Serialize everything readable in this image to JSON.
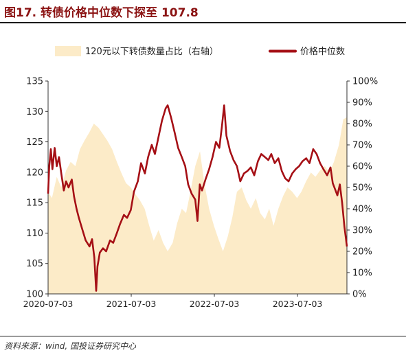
{
  "figure": {
    "title": "图17. 转债价格中位数下探至 107.8",
    "source": "资料来源：wind, 国投证券研究中心"
  },
  "chart_data": {
    "type": "line",
    "legend_position": "top",
    "grid": false,
    "x_ticks": [
      "2020-07-03",
      "2021-07-03",
      "2022-07-03",
      "2023-07-03"
    ],
    "xlim": [
      "2020-07-03",
      "2024-02-05"
    ],
    "y_left": {
      "lim": [
        100,
        135
      ],
      "ticks": [
        "100",
        "105",
        "110",
        "115",
        "120",
        "125",
        "130",
        "135"
      ]
    },
    "y_right": {
      "lim": [
        0,
        100
      ],
      "ticks": [
        "0%",
        "10%",
        "20%",
        "30%",
        "40%",
        "50%",
        "60%",
        "70%",
        "80%",
        "90%",
        "100%"
      ]
    },
    "series": [
      {
        "name": "120元以下转债数量占比（右轴）",
        "kind": "area",
        "axis": "right",
        "color": "#fcebc8",
        "points": [
          [
            "2020-07-03",
            48
          ],
          [
            "2020-07-20",
            45
          ],
          [
            "2020-08-10",
            55
          ],
          [
            "2020-08-30",
            50
          ],
          [
            "2020-09-20",
            58
          ],
          [
            "2020-10-10",
            62
          ],
          [
            "2020-10-31",
            60
          ],
          [
            "2020-11-20",
            68
          ],
          [
            "2020-12-10",
            72
          ],
          [
            "2021-01-01",
            76
          ],
          [
            "2021-01-20",
            80
          ],
          [
            "2021-02-10",
            78
          ],
          [
            "2021-03-01",
            75
          ],
          [
            "2021-03-20",
            72
          ],
          [
            "2021-04-10",
            68
          ],
          [
            "2021-05-01",
            62
          ],
          [
            "2021-05-20",
            57
          ],
          [
            "2021-06-10",
            52
          ],
          [
            "2021-07-01",
            50
          ],
          [
            "2021-07-20",
            47
          ],
          [
            "2021-08-10",
            44
          ],
          [
            "2021-08-31",
            40
          ],
          [
            "2021-09-20",
            32
          ],
          [
            "2021-10-10",
            25
          ],
          [
            "2021-10-31",
            30
          ],
          [
            "2021-11-20",
            24
          ],
          [
            "2021-12-10",
            20
          ],
          [
            "2022-01-01",
            24
          ],
          [
            "2022-01-20",
            33
          ],
          [
            "2022-02-10",
            40
          ],
          [
            "2022-03-01",
            38
          ],
          [
            "2022-03-20",
            48
          ],
          [
            "2022-04-10",
            60
          ],
          [
            "2022-05-01",
            67
          ],
          [
            "2022-05-20",
            52
          ],
          [
            "2022-06-10",
            40
          ],
          [
            "2022-07-01",
            32
          ],
          [
            "2022-07-20",
            26
          ],
          [
            "2022-08-10",
            20
          ],
          [
            "2022-08-31",
            27
          ],
          [
            "2022-09-20",
            36
          ],
          [
            "2022-10-10",
            48
          ],
          [
            "2022-10-31",
            50
          ],
          [
            "2022-11-20",
            44
          ],
          [
            "2022-12-10",
            40
          ],
          [
            "2023-01-01",
            45
          ],
          [
            "2023-01-20",
            38
          ],
          [
            "2023-02-10",
            35
          ],
          [
            "2023-03-01",
            40
          ],
          [
            "2023-03-20",
            32
          ],
          [
            "2023-04-10",
            40
          ],
          [
            "2023-05-01",
            46
          ],
          [
            "2023-05-20",
            50
          ],
          [
            "2023-06-10",
            48
          ],
          [
            "2023-07-01",
            45
          ],
          [
            "2023-07-20",
            48
          ],
          [
            "2023-08-10",
            53
          ],
          [
            "2023-08-31",
            57
          ],
          [
            "2023-09-20",
            55
          ],
          [
            "2023-10-10",
            58
          ],
          [
            "2023-10-31",
            60
          ],
          [
            "2023-11-20",
            57
          ],
          [
            "2023-12-10",
            62
          ],
          [
            "2024-01-01",
            70
          ],
          [
            "2024-01-20",
            82
          ],
          [
            "2024-02-05",
            83
          ]
        ]
      },
      {
        "name": "价格中位数",
        "kind": "line",
        "axis": "left",
        "color": "#a50f15",
        "points": [
          [
            "2020-07-03",
            116.5
          ],
          [
            "2020-07-08",
            121.0
          ],
          [
            "2020-07-15",
            123.8
          ],
          [
            "2020-07-22",
            120.5
          ],
          [
            "2020-08-01",
            124.0
          ],
          [
            "2020-08-10",
            121.0
          ],
          [
            "2020-08-20",
            122.5
          ],
          [
            "2020-08-30",
            119.8
          ],
          [
            "2020-09-10",
            117.0
          ],
          [
            "2020-09-20",
            118.5
          ],
          [
            "2020-10-01",
            117.5
          ],
          [
            "2020-10-15",
            118.8
          ],
          [
            "2020-10-25",
            116.0
          ],
          [
            "2020-11-05",
            114.0
          ],
          [
            "2020-11-15",
            112.5
          ],
          [
            "2020-12-01",
            110.5
          ],
          [
            "2020-12-15",
            108.8
          ],
          [
            "2021-01-01",
            107.8
          ],
          [
            "2021-01-12",
            109.0
          ],
          [
            "2021-01-22",
            106.0
          ],
          [
            "2021-01-30",
            100.5
          ],
          [
            "2021-02-05",
            104.5
          ],
          [
            "2021-02-15",
            106.8
          ],
          [
            "2021-03-01",
            107.5
          ],
          [
            "2021-03-15",
            107.0
          ],
          [
            "2021-04-01",
            108.8
          ],
          [
            "2021-04-15",
            108.4
          ],
          [
            "2021-05-01",
            110.0
          ],
          [
            "2021-05-15",
            111.5
          ],
          [
            "2021-06-01",
            113.0
          ],
          [
            "2021-06-15",
            112.5
          ],
          [
            "2021-07-01",
            113.8
          ],
          [
            "2021-07-15",
            116.8
          ],
          [
            "2021-08-01",
            118.5
          ],
          [
            "2021-08-15",
            121.5
          ],
          [
            "2021-09-01",
            119.8
          ],
          [
            "2021-09-15",
            122.5
          ],
          [
            "2021-10-01",
            124.5
          ],
          [
            "2021-10-15",
            123.0
          ],
          [
            "2021-11-01",
            126.0
          ],
          [
            "2021-11-15",
            128.5
          ],
          [
            "2021-12-01",
            130.5
          ],
          [
            "2021-12-10",
            131.0
          ],
          [
            "2021-12-25",
            129.0
          ],
          [
            "2022-01-10",
            126.5
          ],
          [
            "2022-01-25",
            124.0
          ],
          [
            "2022-02-10",
            122.5
          ],
          [
            "2022-02-25",
            121.0
          ],
          [
            "2022-03-10",
            118.0
          ],
          [
            "2022-03-25",
            116.5
          ],
          [
            "2022-04-10",
            115.5
          ],
          [
            "2022-04-20",
            112.0
          ],
          [
            "2022-04-30",
            118.0
          ],
          [
            "2022-05-10",
            117.0
          ],
          [
            "2022-05-25",
            118.8
          ],
          [
            "2022-06-10",
            120.5
          ],
          [
            "2022-06-25",
            122.5
          ],
          [
            "2022-07-10",
            125.0
          ],
          [
            "2022-07-25",
            124.0
          ],
          [
            "2022-08-05",
            127.5
          ],
          [
            "2022-08-15",
            131.0
          ],
          [
            "2022-08-25",
            126.0
          ],
          [
            "2022-09-10",
            123.5
          ],
          [
            "2022-09-25",
            122.0
          ],
          [
            "2022-10-10",
            121.0
          ],
          [
            "2022-10-25",
            118.5
          ],
          [
            "2022-11-10",
            119.8
          ],
          [
            "2022-11-25",
            120.2
          ],
          [
            "2022-12-10",
            120.8
          ],
          [
            "2022-12-25",
            119.5
          ],
          [
            "2023-01-10",
            121.8
          ],
          [
            "2023-01-25",
            123.0
          ],
          [
            "2023-02-10",
            122.5
          ],
          [
            "2023-02-25",
            122.0
          ],
          [
            "2023-03-10",
            123.0
          ],
          [
            "2023-03-25",
            121.5
          ],
          [
            "2023-04-10",
            122.3
          ],
          [
            "2023-04-25",
            120.2
          ],
          [
            "2023-05-10",
            119.0
          ],
          [
            "2023-05-25",
            118.5
          ],
          [
            "2023-06-10",
            119.8
          ],
          [
            "2023-06-25",
            120.5
          ],
          [
            "2023-07-10",
            121.0
          ],
          [
            "2023-07-25",
            121.8
          ],
          [
            "2023-08-10",
            122.3
          ],
          [
            "2023-08-25",
            121.5
          ],
          [
            "2023-09-10",
            123.8
          ],
          [
            "2023-09-25",
            123.0
          ],
          [
            "2023-10-10",
            121.5
          ],
          [
            "2023-10-25",
            120.5
          ],
          [
            "2023-11-10",
            119.5
          ],
          [
            "2023-11-25",
            120.8
          ],
          [
            "2023-12-05",
            118.2
          ],
          [
            "2023-12-15",
            117.2
          ],
          [
            "2023-12-25",
            116.2
          ],
          [
            "2024-01-05",
            118.0
          ],
          [
            "2024-01-15",
            115.0
          ],
          [
            "2024-01-25",
            111.0
          ],
          [
            "2024-02-05",
            107.8
          ]
        ]
      }
    ]
  }
}
